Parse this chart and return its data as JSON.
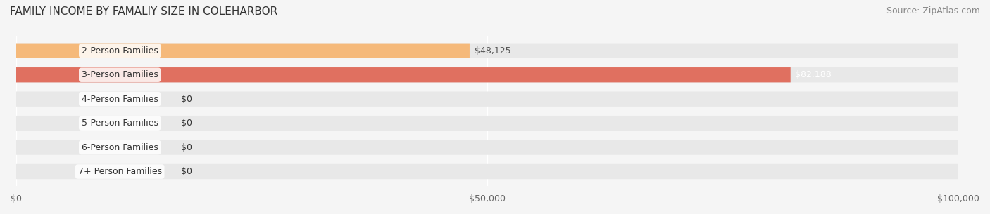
{
  "title": "FAMILY INCOME BY FAMALIY SIZE IN COLEHARBOR",
  "source": "Source: ZipAtlas.com",
  "categories": [
    "2-Person Families",
    "3-Person Families",
    "4-Person Families",
    "5-Person Families",
    "6-Person Families",
    "7+ Person Families"
  ],
  "values": [
    48125,
    82188,
    0,
    0,
    0,
    0
  ],
  "bar_colors": [
    "#f5b97a",
    "#e07060",
    "#89a8d0",
    "#c9a8c8",
    "#5dbdb8",
    "#a8a8d0"
  ],
  "label_colors": [
    "#555555",
    "#ffffff",
    "#555555",
    "#555555",
    "#555555",
    "#555555"
  ],
  "value_labels": [
    "$48,125",
    "$82,188",
    "$0",
    "$0",
    "$0",
    "$0"
  ],
  "xlim": [
    0,
    100000
  ],
  "xticks": [
    0,
    50000,
    100000
  ],
  "xtick_labels": [
    "$0",
    "$50,000",
    "$100,000"
  ],
  "background_color": "#f5f5f5",
  "bar_background": "#e8e8e8",
  "title_fontsize": 11,
  "source_fontsize": 9,
  "label_fontsize": 9,
  "value_fontsize": 9,
  "bar_height": 0.62,
  "figsize": [
    14.06,
    3.05
  ],
  "dpi": 100
}
